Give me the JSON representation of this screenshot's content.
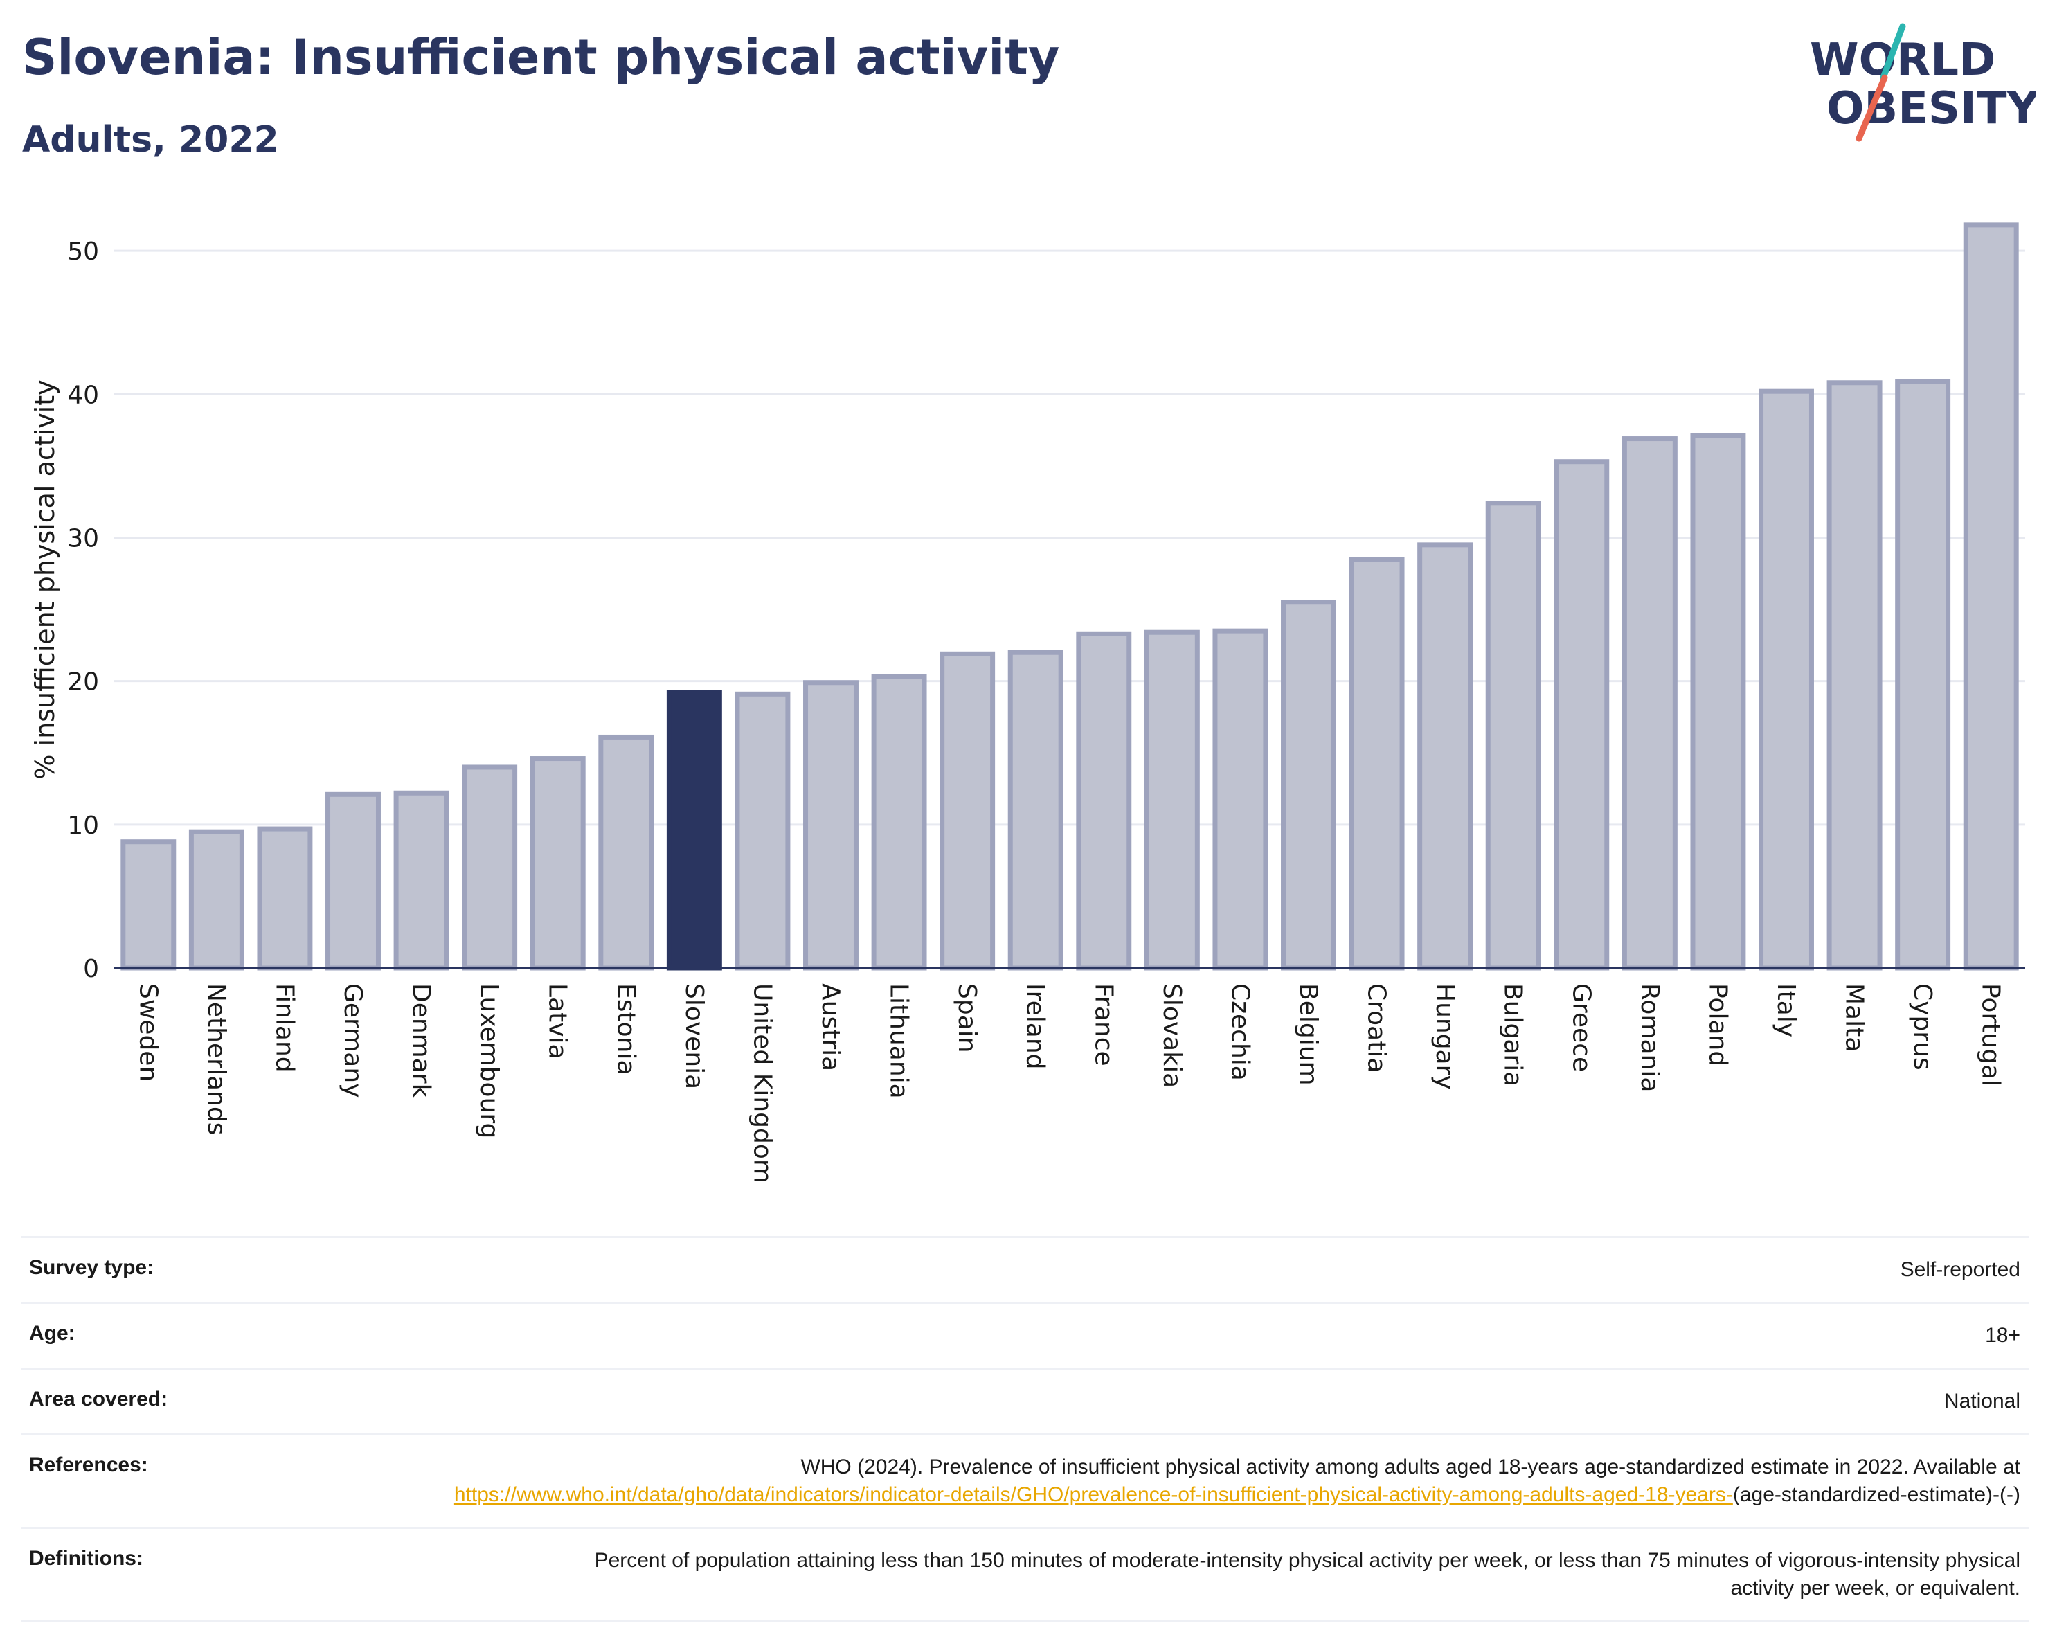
{
  "header": {
    "title": "Slovenia: Insufficient physical activity",
    "subtitle": "Adults, 2022"
  },
  "logo": {
    "line1": "WORLD",
    "line2": "OBESITY",
    "accent_colors": [
      "#2bb5b0",
      "#e8654f"
    ]
  },
  "colors": {
    "highlight": "#2a3560",
    "bar": "#bfc2d0",
    "bar_border": "#9ea3bd",
    "text_dark": "#2a3560",
    "link": "#e8a600"
  },
  "chart_data": {
    "type": "bar",
    "ylabel": "% insufficient physical activity",
    "ylim": [
      0,
      53
    ],
    "yticks": [
      0,
      10,
      20,
      30,
      40,
      50
    ],
    "grid": true,
    "highlight": "Slovenia",
    "categories": [
      "Sweden",
      "Netherlands",
      "Finland",
      "Germany",
      "Denmark",
      "Luxembourg",
      "Latvia",
      "Estonia",
      "Slovenia",
      "United Kingdom",
      "Austria",
      "Lithuania",
      "Spain",
      "Ireland",
      "France",
      "Slovakia",
      "Czechia",
      "Belgium",
      "Croatia",
      "Hungary",
      "Bulgaria",
      "Greece",
      "Romania",
      "Poland",
      "Italy",
      "Malta",
      "Cyprus",
      "Portugal"
    ],
    "values": [
      8.8,
      9.5,
      9.7,
      12.1,
      12.2,
      14.0,
      14.6,
      16.1,
      19.2,
      19.1,
      19.9,
      20.3,
      21.9,
      22.0,
      23.3,
      23.4,
      23.5,
      25.5,
      28.5,
      29.5,
      32.4,
      35.3,
      36.9,
      37.1,
      40.2,
      40.8,
      40.9,
      51.8
    ]
  },
  "info": {
    "survey_label": "Survey type:",
    "survey_value": "Self-reported",
    "age_label": "Age:",
    "age_value": "18+",
    "area_label": "Area covered:",
    "area_value": "National",
    "ref_label": "References:",
    "ref_text": "WHO (2024). Prevalence of insufficient physical activity among adults aged 18-years age-standardized estimate in 2022. Available at",
    "ref_link": "https://www.who.int/data/gho/data/indicators/indicator-details/GHO/prevalence-of-insufficient-physical-activity-among-adults-aged-18-years-",
    "ref_tail": "(age-standardized-estimate)-(-)",
    "def_label": "Definitions:",
    "def_text": "Percent of population attaining less than 150 minutes of moderate-intensity physical activity per week, or less than 75 minutes of vigorous-intensity physical activity per week, or equivalent."
  }
}
